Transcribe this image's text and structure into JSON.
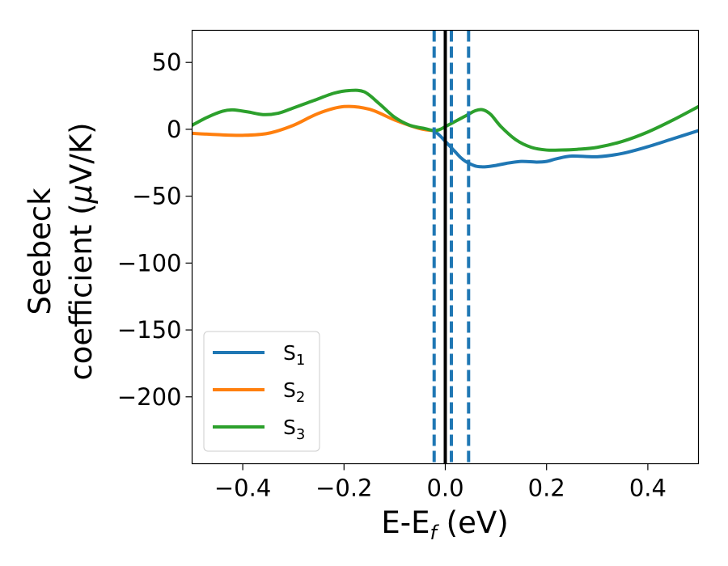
{
  "chart_data": {
    "type": "line",
    "xlabel": {
      "main": "E-E",
      "sub": "f",
      "unit": " (eV)"
    },
    "ylabel": {
      "line1": "Seebeck",
      "line2_pre": "coefficient  (",
      "mu": "μ",
      "line2_post": "V/K)"
    },
    "xlim": [
      -0.5,
      0.5
    ],
    "ylim": [
      -250,
      74
    ],
    "xticks": [
      -0.4,
      -0.2,
      0.0,
      0.2,
      0.4
    ],
    "xtick_labels": [
      "−0.4",
      "−0.2",
      "0.0",
      "0.2",
      "0.4"
    ],
    "yticks": [
      50,
      0,
      -50,
      -100,
      -150,
      -200
    ],
    "ytick_labels": [
      "50",
      "0",
      "−50",
      "−100",
      "−150",
      "−200"
    ],
    "grid": false,
    "legend_position": "lower-left",
    "vlines": [
      {
        "x": -0.022,
        "color": "#1f77b4",
        "style": "dashed"
      },
      {
        "x": 0.012,
        "color": "#1f77b4",
        "style": "dashed"
      },
      {
        "x": 0.046,
        "color": "#1f77b4",
        "style": "dashed"
      },
      {
        "x": 0.0,
        "color": "#000000",
        "style": "solid"
      }
    ],
    "series": [
      {
        "name": "S",
        "sub": "1",
        "color": "#1f77b4",
        "x": [
          -0.022,
          -0.01,
          0.0,
          0.01,
          0.02,
          0.03,
          0.04,
          0.05,
          0.06,
          0.07,
          0.08,
          0.1,
          0.12,
          0.15,
          0.18,
          0.2,
          0.22,
          0.25,
          0.3,
          0.35,
          0.4,
          0.45,
          0.5
        ],
        "y": [
          -1,
          -5,
          -9,
          -13,
          -17,
          -21,
          -24,
          -26,
          -27.5,
          -28,
          -28,
          -27,
          -25.5,
          -24,
          -24.5,
          -24,
          -22,
          -20,
          -20.5,
          -18,
          -13,
          -7,
          -1
        ]
      },
      {
        "name": "S",
        "sub": "2",
        "color": "#ff7f0e",
        "x": [
          -0.5,
          -0.45,
          -0.4,
          -0.35,
          -0.3,
          -0.25,
          -0.2,
          -0.15,
          -0.1,
          -0.05,
          -0.022
        ],
        "y": [
          -3,
          -4,
          -4.5,
          -3,
          3,
          12,
          17,
          15,
          7,
          0.5,
          -1
        ]
      },
      {
        "name": "S",
        "sub": "3",
        "color": "#2ca02c",
        "x": [
          -0.5,
          -0.47,
          -0.44,
          -0.42,
          -0.39,
          -0.36,
          -0.33,
          -0.3,
          -0.26,
          -0.22,
          -0.19,
          -0.16,
          -0.13,
          -0.1,
          -0.07,
          -0.04,
          -0.022,
          -0.01,
          0.0,
          0.02,
          0.04,
          0.06,
          0.075,
          0.09,
          0.11,
          0.14,
          0.17,
          0.2,
          0.23,
          0.26,
          0.3,
          0.35,
          0.4,
          0.45,
          0.5
        ],
        "y": [
          3,
          9,
          13.5,
          14.5,
          13,
          11,
          12,
          16,
          21.5,
          27,
          29,
          28,
          19,
          9,
          3,
          0.5,
          -1,
          0,
          2,
          6,
          10,
          14,
          14.5,
          11,
          2,
          -8,
          -13.5,
          -15.5,
          -15.5,
          -15,
          -13.5,
          -9,
          -2,
          7,
          17
        ]
      }
    ]
  }
}
